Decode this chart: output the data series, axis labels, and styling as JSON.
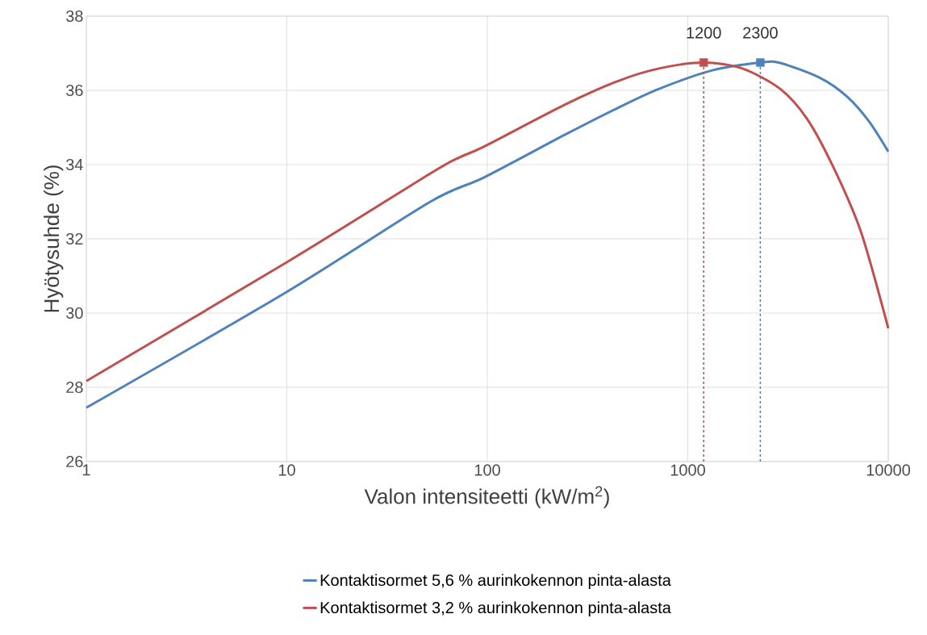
{
  "chart_data": {
    "type": "line",
    "xlabel": "Valon intensiteetti (kW/m$^{2}$)",
    "ylabel": "Hyötysuhde (%)",
    "log": "x",
    "grid": true,
    "legend": "bottom",
    "marker": "none",
    "line_style": "solid",
    "xlim": [
      1,
      10000
    ],
    "xticks": [
      1,
      10,
      100,
      1000,
      10000
    ],
    "ylim": [
      26,
      38
    ],
    "yticks": [
      26,
      28,
      30,
      32,
      34,
      36,
      38
    ],
    "series": [
      {
        "name": "Kontaktisormet 5,6 % aurinkokennon pinta-alasta",
        "color": "#4f81bd",
        "x": [
          1,
          10,
          52,
          96,
          243,
          453,
          719,
          1327,
          2300,
          2890,
          4592,
          6237,
          8001,
          10000
        ],
        "values": [
          27.45,
          30.57,
          33.0,
          33.65,
          34.8,
          35.54,
          36.04,
          36.54,
          36.75,
          36.74,
          36.33,
          35.83,
          35.17,
          34.35
        ]
      },
      {
        "name": "Kontaktisormet 3,2 % aurinkokennon pinta-alasta",
        "color": "#c0504d",
        "x": [
          1,
          10,
          52,
          73,
          96,
          243,
          453,
          719,
          1200,
          1871,
          2890,
          3925,
          5322,
          7295,
          10000
        ],
        "values": [
          28.17,
          31.37,
          33.76,
          34.2,
          34.48,
          35.61,
          36.26,
          36.59,
          36.75,
          36.59,
          36.04,
          35.24,
          33.93,
          32.2,
          29.59
        ]
      },
      {
        "type": "scatter",
        "marker": "square",
        "color": "#c0504d",
        "x": [
          1200
        ],
        "values": [
          36.75
        ]
      },
      {
        "type": "scatter",
        "marker": "square",
        "color": "#4f81bd",
        "x": [
          2300
        ],
        "values": [
          36.75
        ]
      }
    ],
    "ref_lines": [
      {
        "axis": "x",
        "value": 1200,
        "label": "1200",
        "color": "#c0504d",
        "line_style": "dashed"
      },
      {
        "axis": "x",
        "value": 2300,
        "label": "2300",
        "color": "#4f81bd",
        "line_style": "dashed"
      }
    ]
  }
}
